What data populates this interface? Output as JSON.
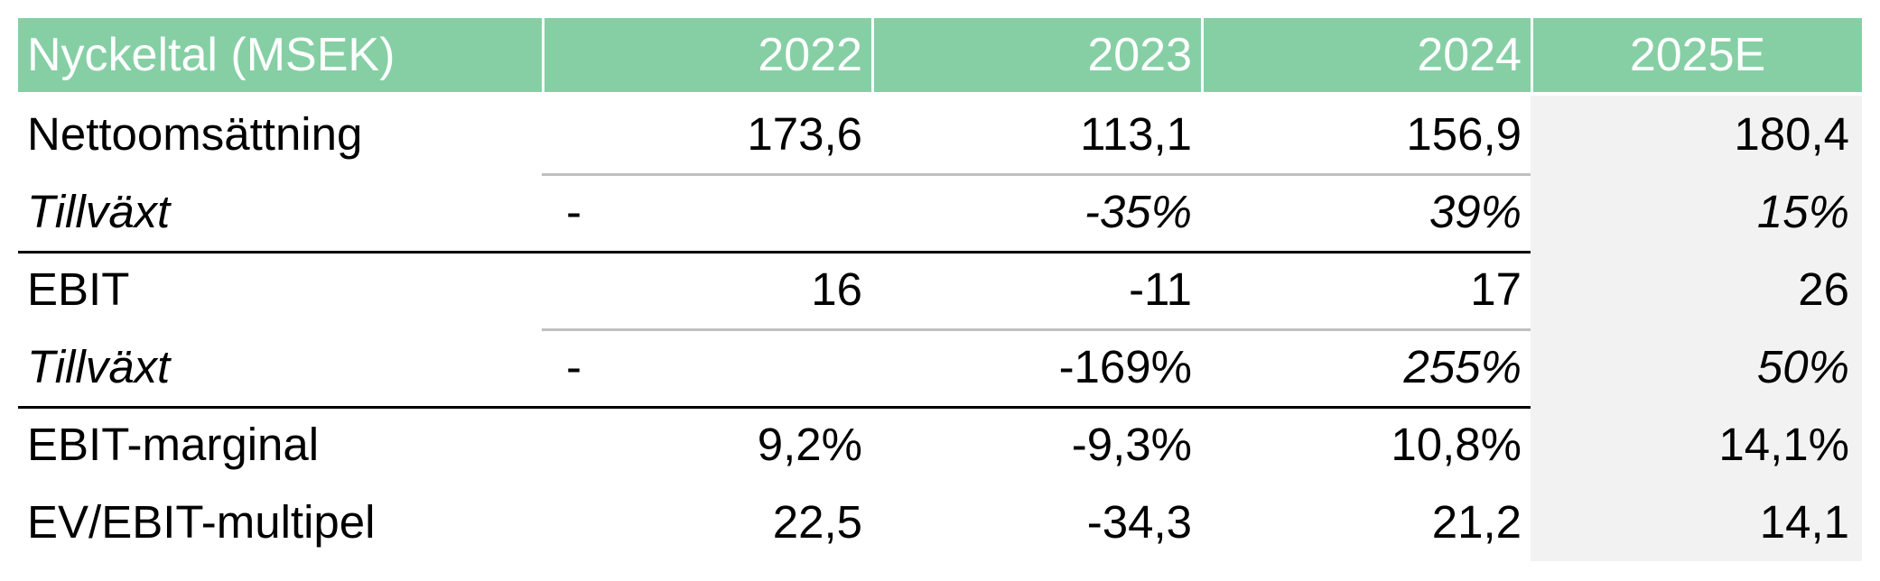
{
  "table": {
    "header": {
      "label": "Nyckeltal (MSEK)",
      "years": [
        "2022",
        "2023",
        "2024",
        "2025E"
      ]
    },
    "rows": [
      {
        "label": "Nettoomsättning",
        "values": [
          "173,6",
          "113,1",
          "156,9",
          "180,4"
        ]
      },
      {
        "label": "Tillväxt",
        "values": [
          "-",
          "-35%",
          "39%",
          "15%"
        ]
      },
      {
        "label": "EBIT",
        "values": [
          "16",
          "-11",
          "17",
          "26"
        ]
      },
      {
        "label": "Tillväxt",
        "values": [
          "-",
          "-169%",
          "255%",
          "50%"
        ]
      },
      {
        "label": "EBIT-marginal",
        "values": [
          "9,2%",
          "-9,3%",
          "10,8%",
          "14,1%"
        ]
      },
      {
        "label": "EV/EBIT-multipel",
        "values": [
          "22,5",
          "-34,3",
          "21,2",
          "14,1"
        ]
      }
    ]
  }
}
